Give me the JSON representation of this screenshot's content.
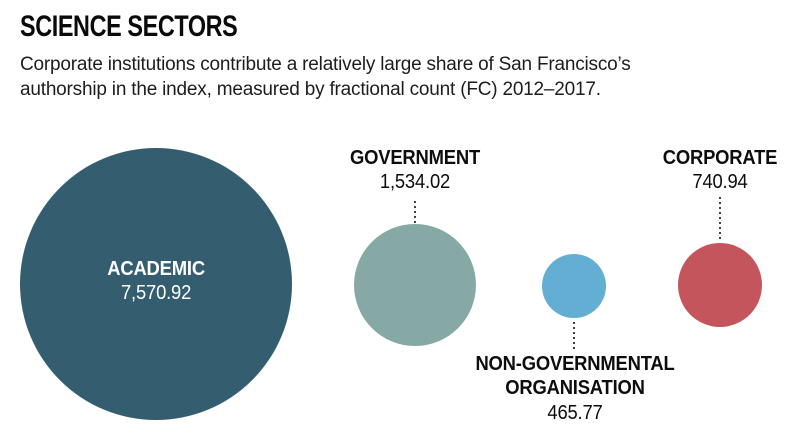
{
  "header": {
    "title": "SCIENCE SECTORS",
    "subtitle_lines": [
      "Corporate institutions contribute a relatively large share of San Francisco’s",
      "authorship in the index, measured by fractional count (FC) 2012–2017."
    ]
  },
  "chart_data": {
    "type": "bubble",
    "title": "SCIENCE SECTORS",
    "subtitle": "Corporate institutions contribute a relatively large share of San Francisco’s authorship in the index, measured by fractional count (FC) 2012–2017.",
    "metric": "fractional count (FC) 2012–2017",
    "sizing": "circle area proportional to value",
    "layout": "circles in a horizontal row, centers vertically aligned",
    "bubbles": [
      {
        "label": "ACADEMIC",
        "value": 7570.92,
        "display_value": "7,570.92",
        "color": "#345e70",
        "label_position": "inside",
        "label_color": "#ffffff"
      },
      {
        "label": "GOVERNMENT",
        "value": 1534.02,
        "display_value": "1,534.02",
        "color": "#87a9a5",
        "label_position": "above",
        "label_color": "#0d0d0d"
      },
      {
        "label": "NON-GOVERNMENTAL ORGANISATION",
        "label_lines": [
          "NON-GOVERNMENTAL",
          "ORGANISATION"
        ],
        "value": 465.77,
        "display_value": "465.77",
        "color": "#63aed3",
        "label_position": "below",
        "label_color": "#0d0d0d"
      },
      {
        "label": "CORPORATE",
        "value": 740.94,
        "display_value": "740.94",
        "color": "#c5555c",
        "label_position": "above",
        "label_color": "#0d0d0d"
      }
    ]
  }
}
